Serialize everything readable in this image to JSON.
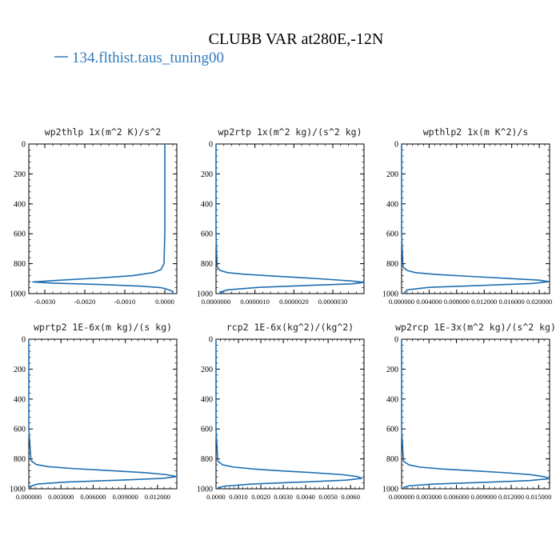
{
  "figure": {
    "title": "CLUBB VAR at280E,-12N",
    "legend_label": "134.flthist.taus_tuning00",
    "legend_color": "#2f7bbd",
    "line_color": "#1f6fb2"
  },
  "chart_data": [
    {
      "type": "line",
      "title": "wp2thlp   1x(m^2 K)/s^2",
      "ylim": [
        0,
        1000
      ],
      "yticks": [
        0,
        200,
        400,
        600,
        800,
        1000
      ],
      "xlim": [
        -0.0034,
        0.0003
      ],
      "xticks": [
        -0.003,
        -0.002,
        -0.001,
        0.0
      ],
      "xtick_labels": [
        "-0.0030",
        "-0.0020",
        "-0.0010",
        "0.0000"
      ],
      "series": [
        {
          "x": [
            0.0,
            0.0,
            0.0,
            0.0,
            -2e-05,
            -0.0001,
            -0.0003,
            -0.0008,
            -0.0016,
            -0.0026,
            -0.0033,
            -0.0028,
            -0.0015,
            -0.0006,
            -0.0001,
            5e-05,
            0.0002,
            0.0002
          ],
          "y": [
            0,
            200,
            400,
            600,
            800,
            840,
            860,
            880,
            895,
            910,
            922,
            930,
            940,
            950,
            960,
            970,
            985,
            1000
          ]
        }
      ]
    },
    {
      "type": "line",
      "title": "wp2rtp   1x(m^2 kg)/(s^2 kg)",
      "ylim": [
        0,
        1000
      ],
      "yticks": [
        0,
        200,
        400,
        600,
        800,
        1000
      ],
      "xlim": [
        0.0,
        3.8e-06
      ],
      "xticks": [
        0.0,
        1e-06,
        2e-06,
        3e-06
      ],
      "xtick_labels": [
        "0.0000000",
        "0.0000010",
        "0.0000020",
        "0.0000030"
      ],
      "series": [
        {
          "x": [
            0.0,
            0.0,
            0.0,
            0.0,
            3e-08,
            1e-07,
            3e-07,
            7e-07,
            1.3e-06,
            2.1e-06,
            2.9e-06,
            3.5e-06,
            3.8e-06,
            3.5e-06,
            2.4e-06,
            1.1e-06,
            3e-07,
            1e-07,
            2e-07
          ],
          "y": [
            0,
            200,
            400,
            600,
            820,
            845,
            860,
            870,
            880,
            892,
            905,
            916,
            925,
            935,
            945,
            958,
            975,
            990,
            1000
          ]
        }
      ]
    },
    {
      "type": "line",
      "title": "wpthlp2   1x(m K^2)/s",
      "ylim": [
        0,
        1000
      ],
      "yticks": [
        0,
        200,
        400,
        600,
        800,
        1000
      ],
      "xlim": [
        0.0,
        0.0215
      ],
      "xticks": [
        0.0,
        0.004,
        0.008,
        0.012,
        0.016,
        0.02
      ],
      "xtick_labels": [
        "0.000000",
        "0.004000",
        "0.008000",
        "0.012000",
        "0.016000",
        "0.020000"
      ],
      "series": [
        {
          "x": [
            0.0,
            0.0,
            0.0,
            0.0,
            0.0002,
            0.0008,
            0.002,
            0.005,
            0.01,
            0.016,
            0.02,
            0.0214,
            0.019,
            0.012,
            0.004,
            0.0008,
            0.0003
          ],
          "y": [
            0,
            200,
            400,
            600,
            820,
            845,
            860,
            872,
            885,
            900,
            910,
            920,
            932,
            945,
            958,
            975,
            1000
          ]
        }
      ]
    },
    {
      "type": "line",
      "title": "wprtp2   1E-6x(m kg)/(s kg)",
      "ylim": [
        0,
        1000
      ],
      "yticks": [
        0,
        200,
        400,
        600,
        800,
        1000
      ],
      "xlim": [
        0.0,
        0.0138
      ],
      "xticks": [
        0.0,
        0.003,
        0.006,
        0.009,
        0.012
      ],
      "xtick_labels": [
        "0.000000",
        "0.003000",
        "0.006000",
        "0.009000",
        "0.012000"
      ],
      "series": [
        {
          "x": [
            0.0,
            0.0,
            0.0,
            0.0,
            0.0002,
            0.0007,
            0.0018,
            0.0042,
            0.0075,
            0.0108,
            0.0128,
            0.0138,
            0.0125,
            0.0085,
            0.0035,
            0.0008,
            0.0001,
            0.0003
          ],
          "y": [
            0,
            200,
            400,
            600,
            810,
            838,
            852,
            865,
            878,
            892,
            905,
            918,
            930,
            942,
            955,
            968,
            985,
            1000
          ]
        }
      ]
    },
    {
      "type": "line",
      "title": "rcp2   1E-6x(kg^2)/(kg^2)",
      "ylim": [
        0,
        1000
      ],
      "yticks": [
        0,
        200,
        400,
        600,
        800,
        1000
      ],
      "xlim": [
        0.0,
        0.0066
      ],
      "xticks": [
        0.0,
        0.001,
        0.002,
        0.003,
        0.004,
        0.005,
        0.006
      ],
      "xtick_labels": [
        "0.0000",
        "0.0010",
        "0.0020",
        "0.0030",
        "0.0040",
        "0.0050",
        "0.0060"
      ],
      "series": [
        {
          "x": [
            0.0,
            0.0,
            0.0,
            0.0,
            8e-05,
            0.0003,
            0.0008,
            0.0017,
            0.0029,
            0.0043,
            0.0056,
            0.0063,
            0.0065,
            0.0058,
            0.0038,
            0.0016,
            0.0004,
            0.0001,
            0.0002
          ],
          "y": [
            0,
            200,
            400,
            600,
            815,
            840,
            855,
            868,
            880,
            892,
            905,
            918,
            930,
            942,
            955,
            968,
            982,
            992,
            1000
          ]
        }
      ]
    },
    {
      "type": "line",
      "title": "wp2rcp   1E-3x(m^2 kg)/(s^2 kg)",
      "ylim": [
        0,
        1000
      ],
      "yticks": [
        0,
        200,
        400,
        600,
        800,
        1000
      ],
      "xlim": [
        0.0,
        0.0162
      ],
      "xticks": [
        0.0,
        0.003,
        0.006,
        0.009,
        0.012,
        0.015
      ],
      "xtick_labels": [
        "0.000000",
        "0.003000",
        "0.006000",
        "0.009000",
        "0.012000",
        "0.015000"
      ],
      "series": [
        {
          "x": [
            0.0,
            0.0,
            0.0,
            0.0,
            0.0002,
            0.0008,
            0.002,
            0.0045,
            0.008,
            0.0115,
            0.0142,
            0.0157,
            0.0161,
            0.014,
            0.009,
            0.0035,
            0.0008,
            0.0002,
            0.0004
          ],
          "y": [
            0,
            200,
            400,
            600,
            815,
            840,
            855,
            868,
            880,
            893,
            906,
            920,
            933,
            945,
            957,
            968,
            980,
            992,
            1000
          ]
        }
      ]
    }
  ]
}
